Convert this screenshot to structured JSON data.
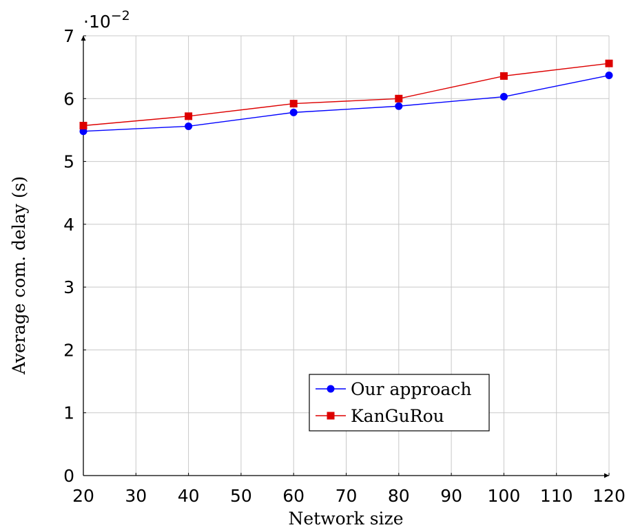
{
  "chart_data": {
    "type": "line",
    "x": [
      20,
      40,
      60,
      80,
      100,
      120
    ],
    "series": [
      {
        "name": "Our approach",
        "values": [
          5.48,
          5.56,
          5.78,
          5.88,
          6.03,
          6.37
        ],
        "color": "#0000ff",
        "marker": "circle"
      },
      {
        "name": "KanGuRou",
        "values": [
          5.57,
          5.72,
          5.92,
          6.0,
          6.36,
          6.56
        ],
        "color": "#dd0000",
        "marker": "square"
      }
    ],
    "xlabel": "Network size",
    "ylabel": "Average com. delay (s)",
    "y_scale_label": "·10",
    "y_scale_exponent": "−2",
    "xlim": [
      20,
      120
    ],
    "ylim": [
      0,
      7
    ],
    "xticks": [
      20,
      30,
      40,
      50,
      60,
      70,
      80,
      90,
      100,
      110,
      120
    ],
    "yticks": [
      0,
      1,
      2,
      3,
      4,
      5,
      6,
      7
    ],
    "grid": true,
    "legend_position": "bottom-center"
  }
}
